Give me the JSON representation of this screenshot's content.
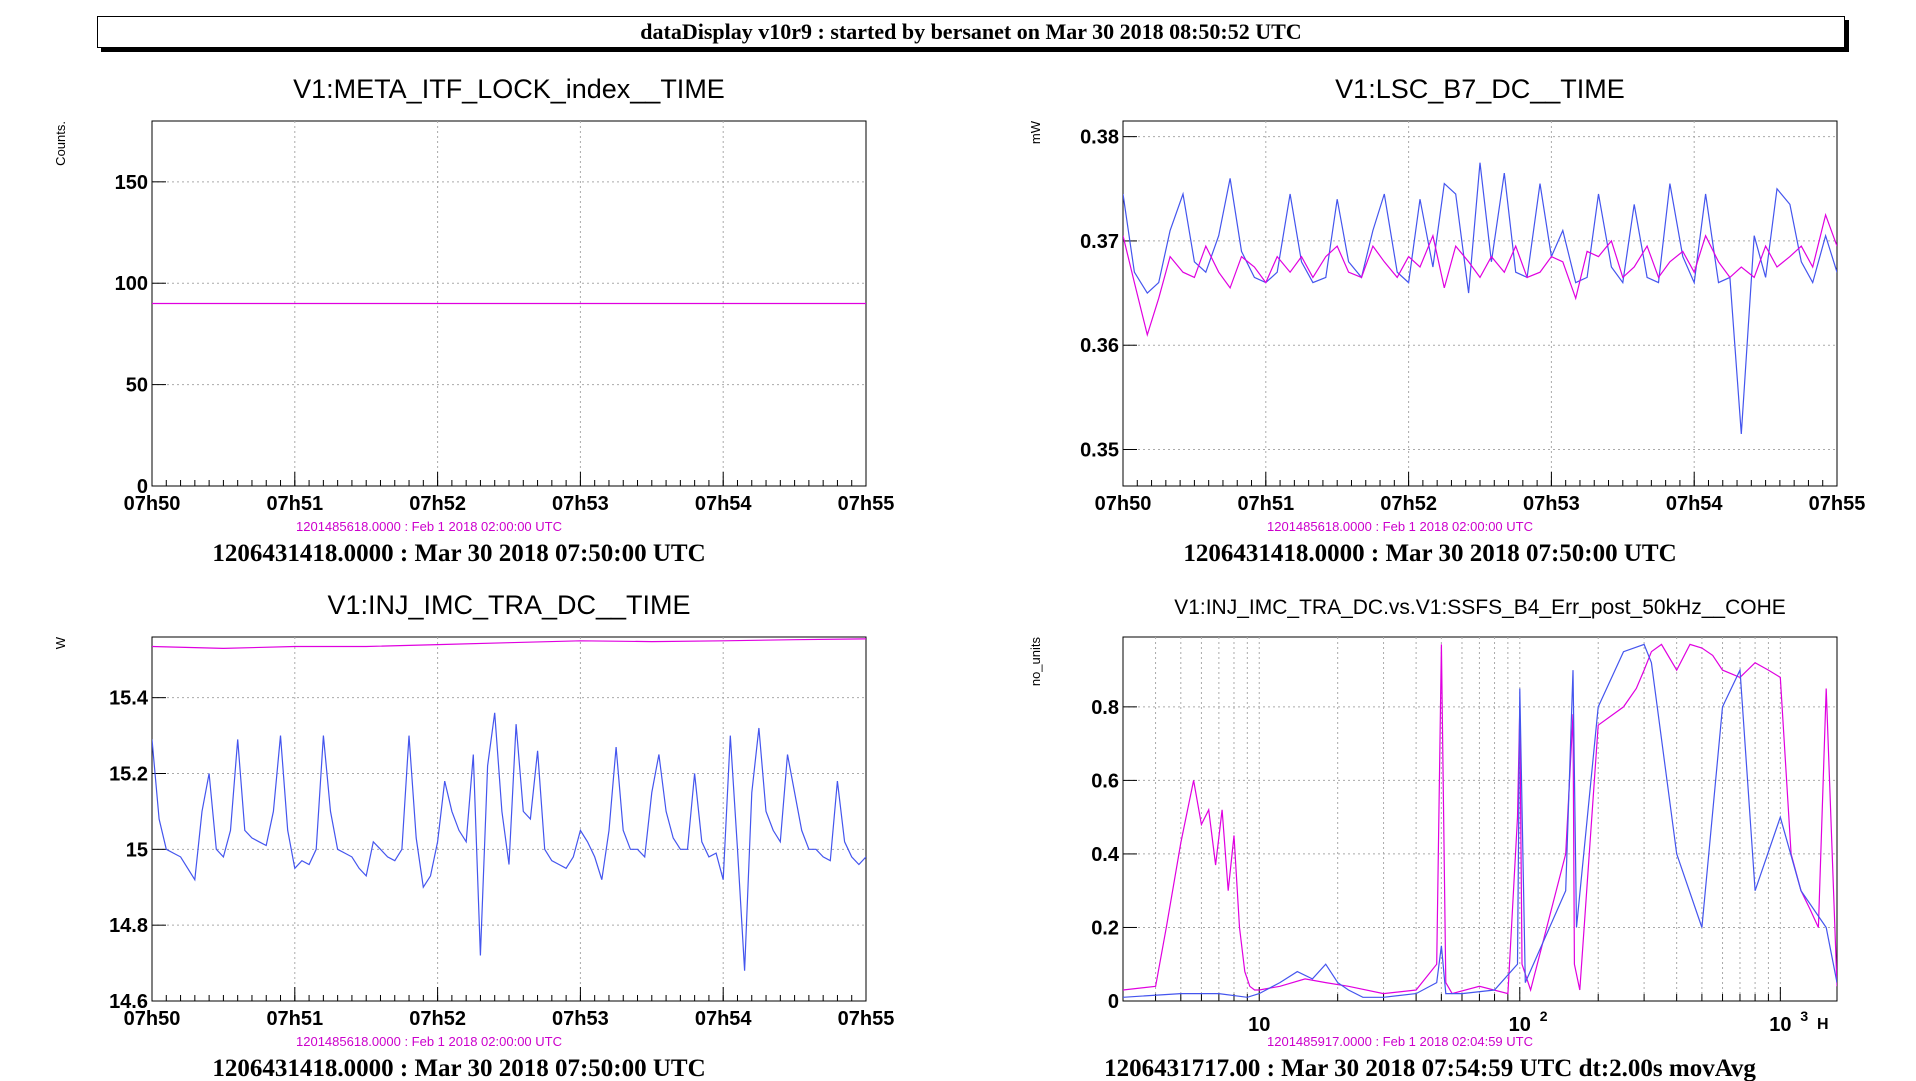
{
  "banner": "dataDisplay v10r9 : started by bersanet on Mar 30 2018 08:50:52 UTC",
  "colors": {
    "magenta": "#e000e0",
    "blue": "#4455ee",
    "grid": "#aaaaaa"
  },
  "panels": [
    {
      "title": "V1:META_ITF_LOCK_index__TIME",
      "ylabel": "Counts.",
      "subtitle": "1201485618.0000 : Feb  1 2018 02:00:00 UTC",
      "footer": "1206431418.0000 : Mar 30 2018 07:50:00 UTC",
      "yticks": [
        "150",
        "100",
        "50",
        "0"
      ],
      "xticks": [
        "07h50",
        "07h51",
        "07h52",
        "07h53",
        "07h54",
        "07h55"
      ]
    },
    {
      "title": "V1:LSC_B7_DC__TIME",
      "ylabel": "mW",
      "subtitle": "1201485618.0000 : Feb  1 2018 02:00:00 UTC",
      "footer": "1206431418.0000 : Mar 30 2018 07:50:00 UTC",
      "yticks": [
        "0.38",
        "0.37",
        "0.36",
        "0.35"
      ],
      "xticks": [
        "07h50",
        "07h51",
        "07h52",
        "07h53",
        "07h54",
        "07h55"
      ]
    },
    {
      "title": "V1:INJ_IMC_TRA_DC__TIME",
      "ylabel": "W",
      "subtitle": "1201485618.0000 : Feb  1 2018 02:00:00 UTC",
      "footer": "1206431418.0000 : Mar 30 2018 07:50:00 UTC",
      "yticks": [
        "15.4",
        "15.2",
        "15",
        "14.8",
        "14.6"
      ],
      "xticks": [
        "07h50",
        "07h51",
        "07h52",
        "07h53",
        "07h54",
        "07h55"
      ]
    },
    {
      "title": "V1:INJ_IMC_TRA_DC.vs.V1:SSFS_B4_Err_post_50kHz__COHE",
      "ylabel": "no_units",
      "subtitle": "1201485917.0000 : Feb  1 2018 02:04:59 UTC",
      "footer": "1206431717.00 : Mar 30 2018 07:54:59 UTC dt:2.00s movAvg",
      "yticks": [
        "0.8",
        "0.6",
        "0.4",
        "0.2",
        "0"
      ],
      "xticks": [
        "10",
        "10",
        "10"
      ],
      "xtick_exponents": [
        "",
        "2",
        "3"
      ],
      "xunit_glyph": "H"
    }
  ],
  "chart_data": [
    {
      "type": "line",
      "title": "V1:META_ITF_LOCK_index__TIME",
      "ylabel": "Counts.",
      "x_unit": "minutes after 07h50",
      "xlim": [
        0,
        5
      ],
      "ylim": [
        0,
        180
      ],
      "grid": true,
      "series": [
        {
          "color": "#e000e0",
          "x": [
            0,
            5
          ],
          "y": [
            90,
            90
          ]
        }
      ]
    },
    {
      "type": "line",
      "title": "V1:LSC_B7_DC__TIME",
      "ylabel": "mW",
      "x_unit": "minutes after 07h50",
      "xlim": [
        0,
        5
      ],
      "ylim": [
        0.3465,
        0.3815
      ],
      "grid": true,
      "series": [
        {
          "color": "#4455ee",
          "x": [
            0,
            0.08,
            0.17,
            0.25,
            0.33,
            0.42,
            0.5,
            0.58,
            0.67,
            0.75,
            0.83,
            0.92,
            1.0,
            1.08,
            1.17,
            1.25,
            1.33,
            1.42,
            1.5,
            1.58,
            1.67,
            1.75,
            1.83,
            1.92,
            2.0,
            2.08,
            2.17,
            2.25,
            2.33,
            2.42,
            2.5,
            2.58,
            2.67,
            2.75,
            2.83,
            2.92,
            3.0,
            3.08,
            3.17,
            3.25,
            3.33,
            3.42,
            3.5,
            3.58,
            3.67,
            3.75,
            3.83,
            3.92,
            4.0,
            4.08,
            4.17,
            4.25,
            4.33,
            4.42,
            4.5,
            4.58,
            4.67,
            4.75,
            4.83,
            4.92,
            5.0
          ],
          "y": [
            0.3745,
            0.367,
            0.365,
            0.366,
            0.371,
            0.3745,
            0.368,
            0.367,
            0.3705,
            0.376,
            0.369,
            0.3665,
            0.366,
            0.367,
            0.3745,
            0.368,
            0.366,
            0.3665,
            0.374,
            0.368,
            0.3665,
            0.371,
            0.3745,
            0.367,
            0.366,
            0.374,
            0.3675,
            0.3755,
            0.3745,
            0.365,
            0.3775,
            0.368,
            0.3765,
            0.367,
            0.3665,
            0.3755,
            0.3685,
            0.371,
            0.366,
            0.3665,
            0.3745,
            0.3675,
            0.366,
            0.3735,
            0.3665,
            0.366,
            0.3755,
            0.3685,
            0.366,
            0.3745,
            0.366,
            0.3665,
            0.3515,
            0.3705,
            0.3665,
            0.375,
            0.3735,
            0.368,
            0.366,
            0.3705,
            0.367
          ]
        },
        {
          "color": "#e000e0",
          "x": [
            0,
            0.08,
            0.17,
            0.25,
            0.33,
            0.42,
            0.5,
            0.58,
            0.67,
            0.75,
            0.83,
            0.92,
            1.0,
            1.08,
            1.17,
            1.25,
            1.33,
            1.42,
            1.5,
            1.58,
            1.67,
            1.75,
            1.83,
            1.92,
            2.0,
            2.08,
            2.17,
            2.25,
            2.33,
            2.42,
            2.5,
            2.58,
            2.67,
            2.75,
            2.83,
            2.92,
            3.0,
            3.08,
            3.17,
            3.25,
            3.33,
            3.42,
            3.5,
            3.58,
            3.67,
            3.75,
            3.83,
            3.92,
            4.0,
            4.08,
            4.17,
            4.25,
            4.33,
            4.42,
            4.5,
            4.58,
            4.67,
            4.75,
            4.83,
            4.92,
            5.0
          ],
          "y": [
            0.3705,
            0.366,
            0.361,
            0.3645,
            0.3685,
            0.367,
            0.3665,
            0.3695,
            0.367,
            0.3655,
            0.3685,
            0.3675,
            0.366,
            0.3685,
            0.367,
            0.3685,
            0.3665,
            0.3685,
            0.3695,
            0.367,
            0.3665,
            0.3695,
            0.368,
            0.3665,
            0.3685,
            0.3675,
            0.3705,
            0.3655,
            0.3695,
            0.368,
            0.3665,
            0.3685,
            0.367,
            0.3695,
            0.3665,
            0.367,
            0.3685,
            0.368,
            0.3645,
            0.369,
            0.3685,
            0.37,
            0.3665,
            0.3675,
            0.3695,
            0.3665,
            0.368,
            0.369,
            0.367,
            0.3705,
            0.368,
            0.3665,
            0.3675,
            0.3665,
            0.3695,
            0.3675,
            0.3685,
            0.3695,
            0.3675,
            0.3725,
            0.3695
          ]
        }
      ]
    },
    {
      "type": "line",
      "title": "V1:INJ_IMC_TRA_DC__TIME",
      "ylabel": "W",
      "x_unit": "minutes after 07h50",
      "xlim": [
        0,
        5
      ],
      "ylim": [
        14.6,
        15.56
      ],
      "grid": true,
      "series": [
        {
          "color": "#e000e0",
          "x": [
            0,
            0.5,
            1.0,
            1.5,
            2.0,
            2.5,
            3.0,
            3.5,
            4.0,
            4.5,
            5.0
          ],
          "y": [
            15.535,
            15.53,
            15.535,
            15.535,
            15.54,
            15.545,
            15.55,
            15.548,
            15.55,
            15.553,
            15.555
          ]
        },
        {
          "color": "#4455ee",
          "x": [
            0,
            0.05,
            0.1,
            0.15,
            0.2,
            0.25,
            0.3,
            0.35,
            0.4,
            0.45,
            0.5,
            0.55,
            0.6,
            0.65,
            0.7,
            0.75,
            0.8,
            0.85,
            0.9,
            0.95,
            1.0,
            1.05,
            1.1,
            1.15,
            1.2,
            1.25,
            1.3,
            1.35,
            1.4,
            1.45,
            1.5,
            1.55,
            1.6,
            1.65,
            1.7,
            1.75,
            1.8,
            1.85,
            1.9,
            1.95,
            2.0,
            2.05,
            2.1,
            2.15,
            2.2,
            2.25,
            2.3,
            2.35,
            2.4,
            2.45,
            2.5,
            2.55,
            2.6,
            2.65,
            2.7,
            2.75,
            2.8,
            2.85,
            2.9,
            2.95,
            3.0,
            3.05,
            3.1,
            3.15,
            3.2,
            3.25,
            3.3,
            3.35,
            3.4,
            3.45,
            3.5,
            3.55,
            3.6,
            3.65,
            3.7,
            3.75,
            3.8,
            3.85,
            3.9,
            3.95,
            4.0,
            4.05,
            4.1,
            4.15,
            4.2,
            4.25,
            4.3,
            4.35,
            4.4,
            4.45,
            4.5,
            4.55,
            4.6,
            4.65,
            4.7,
            4.75,
            4.8,
            4.85,
            4.9,
            4.95,
            5.0
          ],
          "y": [
            15.29,
            15.08,
            15.0,
            14.99,
            14.98,
            14.95,
            14.92,
            15.1,
            15.2,
            15.0,
            14.98,
            15.05,
            15.29,
            15.05,
            15.03,
            15.02,
            15.01,
            15.1,
            15.3,
            15.05,
            14.95,
            14.97,
            14.96,
            15.0,
            15.3,
            15.1,
            15.0,
            14.99,
            14.98,
            14.95,
            14.93,
            15.02,
            15.0,
            14.98,
            14.97,
            15.0,
            15.3,
            15.03,
            14.9,
            14.93,
            15.02,
            15.18,
            15.1,
            15.05,
            15.02,
            15.25,
            14.72,
            15.22,
            15.36,
            15.1,
            14.96,
            15.33,
            15.1,
            15.08,
            15.26,
            15.0,
            14.97,
            14.96,
            14.95,
            14.98,
            15.05,
            15.02,
            14.98,
            14.92,
            15.05,
            15.27,
            15.05,
            15.0,
            15.0,
            14.98,
            15.15,
            15.25,
            15.1,
            15.03,
            15.0,
            15.0,
            15.2,
            15.02,
            14.98,
            14.99,
            14.92,
            15.3,
            15.0,
            14.68,
            15.15,
            15.32,
            15.1,
            15.05,
            15.02,
            15.25,
            15.15,
            15.05,
            15.0,
            15.0,
            14.98,
            14.97,
            15.18,
            15.02,
            14.98,
            14.96,
            14.98
          ]
        }
      ]
    },
    {
      "type": "line",
      "title": "V1:INJ_IMC_TRA_DC.vs.V1:SSFS_B4_Err_post_50kHz__COHE",
      "ylabel": "no_units",
      "x_scale": "log",
      "xlim": [
        3,
        1650
      ],
      "ylim": [
        0,
        0.99
      ],
      "grid": true,
      "series": [
        {
          "color": "#e000e0",
          "x": [
            3,
            4,
            4.4,
            5,
            5.6,
            6,
            6.4,
            6.8,
            7.2,
            7.6,
            8,
            8.4,
            8.8,
            9.2,
            9.6,
            10,
            12,
            15,
            18,
            22,
            30,
            40,
            48,
            50,
            52,
            55,
            70,
            90,
            98,
            100,
            102,
            110,
            150,
            160,
            162,
            170,
            200,
            250,
            280,
            300,
            320,
            350,
            400,
            450,
            500,
            550,
            600,
            700,
            800,
            900,
            1000,
            1100,
            1200,
            1300,
            1400,
            1500,
            1650
          ],
          "y": [
            0.03,
            0.04,
            0.2,
            0.43,
            0.6,
            0.48,
            0.52,
            0.37,
            0.52,
            0.3,
            0.45,
            0.2,
            0.08,
            0.04,
            0.03,
            0.03,
            0.04,
            0.06,
            0.05,
            0.04,
            0.02,
            0.03,
            0.1,
            0.97,
            0.05,
            0.02,
            0.04,
            0.02,
            0.5,
            0.8,
            0.1,
            0.03,
            0.4,
            0.78,
            0.1,
            0.03,
            0.75,
            0.8,
            0.85,
            0.9,
            0.95,
            0.97,
            0.9,
            0.97,
            0.96,
            0.94,
            0.9,
            0.88,
            0.92,
            0.9,
            0.88,
            0.4,
            0.3,
            0.25,
            0.2,
            0.85,
            0.04
          ]
        },
        {
          "color": "#4455ee",
          "x": [
            3,
            5,
            7,
            9,
            10,
            12,
            14,
            16,
            18,
            20,
            22,
            25,
            30,
            40,
            48,
            50,
            52,
            60,
            80,
            98,
            100,
            105,
            150,
            160,
            165,
            200,
            250,
            300,
            320,
            400,
            500,
            600,
            700,
            800,
            1000,
            1200,
            1500,
            1650
          ],
          "y": [
            0.01,
            0.02,
            0.02,
            0.01,
            0.02,
            0.05,
            0.08,
            0.06,
            0.1,
            0.05,
            0.03,
            0.01,
            0.01,
            0.02,
            0.05,
            0.15,
            0.02,
            0.02,
            0.03,
            0.1,
            0.85,
            0.05,
            0.3,
            0.9,
            0.2,
            0.8,
            0.95,
            0.97,
            0.92,
            0.4,
            0.2,
            0.8,
            0.9,
            0.3,
            0.5,
            0.3,
            0.2,
            0.05
          ]
        }
      ]
    }
  ]
}
